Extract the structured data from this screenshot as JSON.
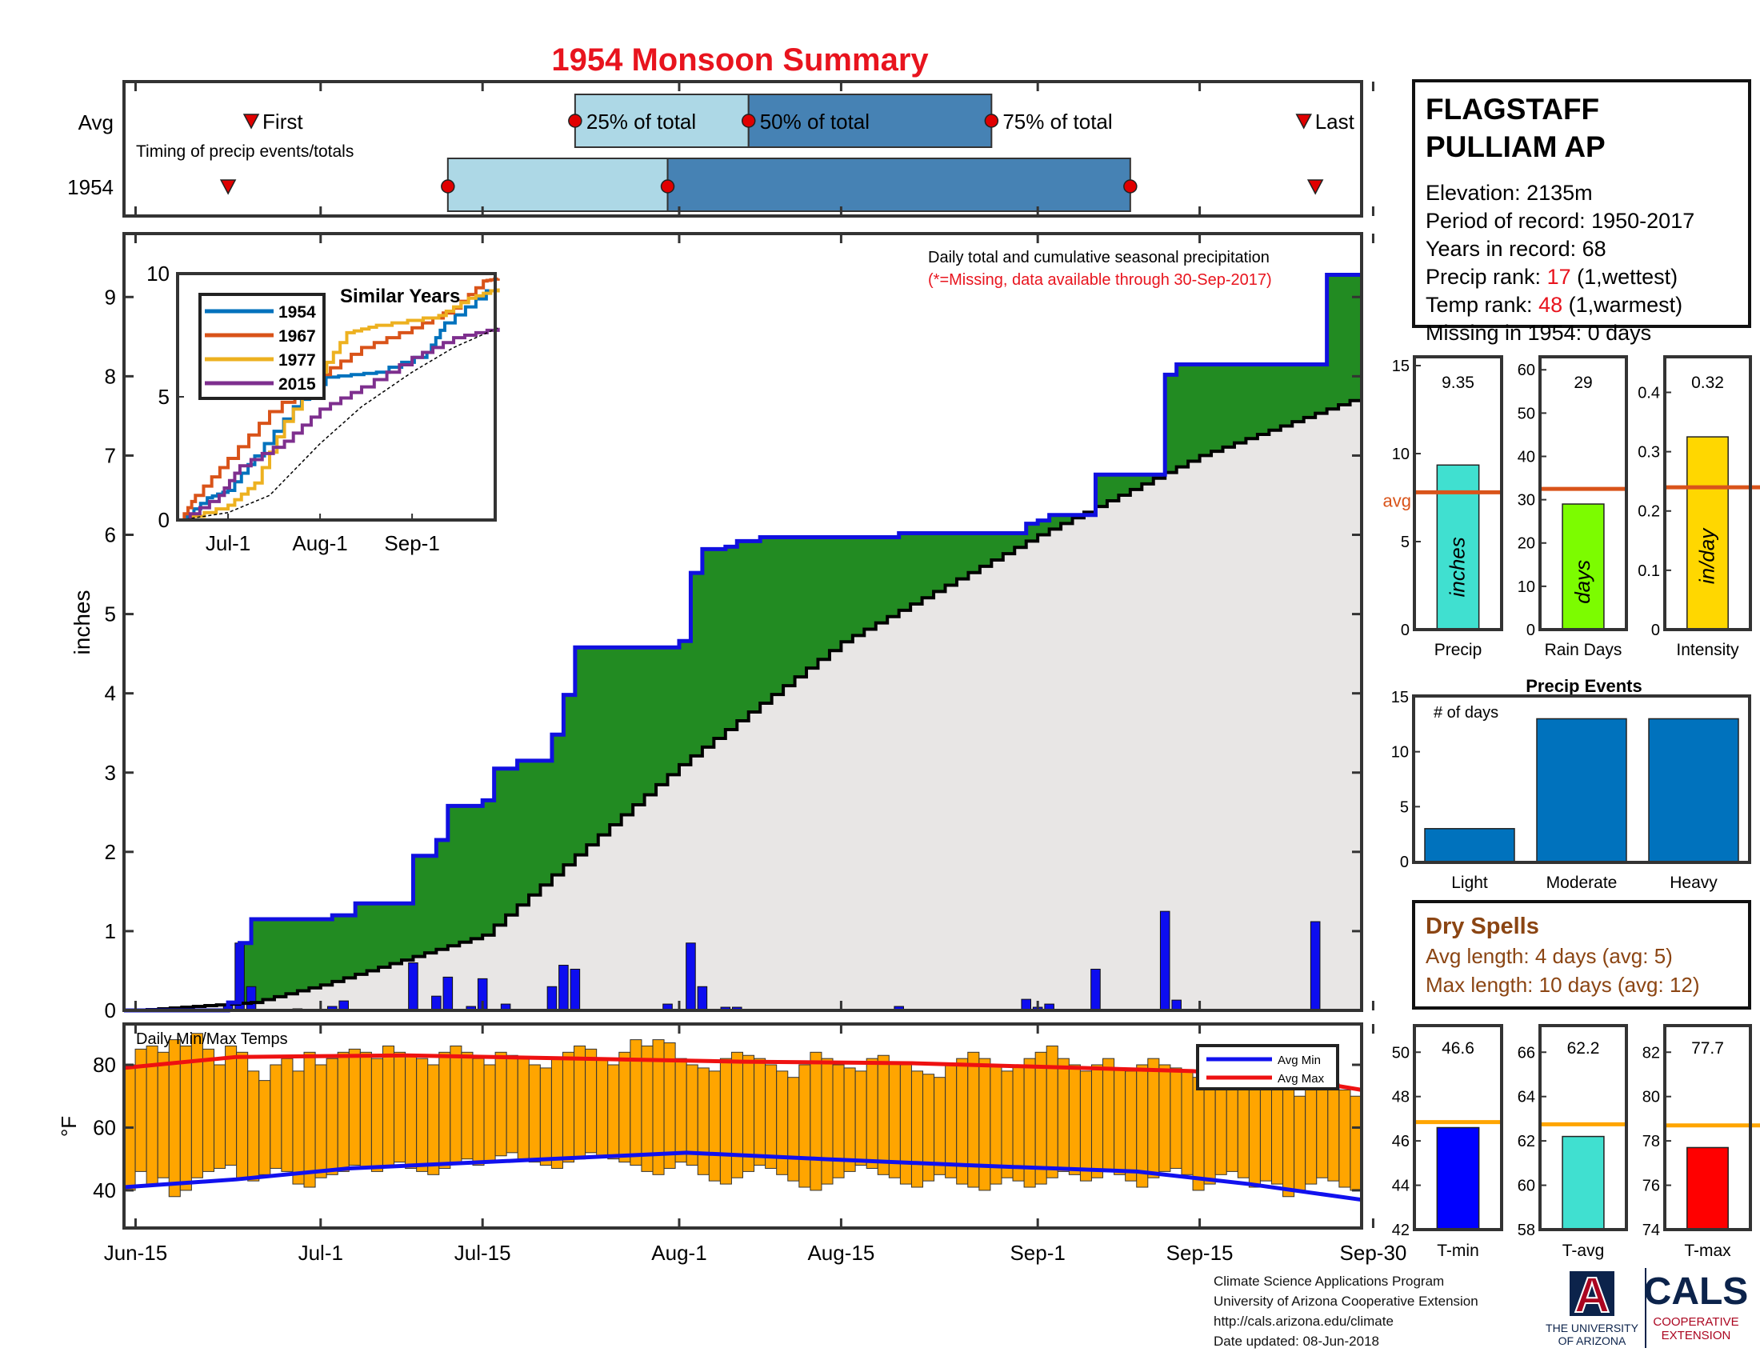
{
  "title": "1954 Monsoon Summary",
  "colors": {
    "title": "#e8141e",
    "rank": "#e8141e",
    "cum_fill": "#228b22",
    "avg_fill": "#e8e6e5",
    "cum_line": "#1010e0",
    "daily_bar": "#0d0df0",
    "q_light": "#add8e6",
    "q_dark": "#4682b4",
    "marker": "#e00000",
    "temp_bar": "#ffa500",
    "avg_max": "#ee1111",
    "avg_min": "#1111ee",
    "avg_line_orange": "#d9541a",
    "dry": "#8b4513",
    "event_bar": "#0072bd",
    "ua_blue": "#0c234b",
    "ua_red": "#ab0520"
  },
  "timing": {
    "row_labels": [
      "Avg",
      "1954"
    ],
    "note": "Timing of precip events/totals",
    "avg": {
      "first": "Jun-25",
      "q25": "Jul-23",
      "q50": "Aug-7",
      "q75": "Aug-28",
      "last": "Sep-24"
    },
    "year": {
      "first": "Jun-23",
      "q25": "Jul-12",
      "q50": "Jul-31",
      "q75": "Sep-9",
      "last": "Sep-25"
    },
    "labels": {
      "first": "First",
      "q25": "25% of total",
      "q50": "50% of total",
      "q75": "75% of total",
      "last": "Last"
    }
  },
  "station": {
    "name_line1": "FLAGSTAFF",
    "name_line2": "PULLIAM AP",
    "elevation": "Elevation: 2135m",
    "period": "Period of record: 1950-2017",
    "years": "Years in record: 68",
    "precip_rank_label": "Precip rank: ",
    "precip_rank_value": "17",
    "precip_rank_note": " (1,wettest)",
    "temp_rank_label": "Temp rank: ",
    "temp_rank_value": "48",
    "temp_rank_note": " (1,warmest)",
    "missing": "Missing in 1954: 0 days"
  },
  "main_chart": {
    "ylabel": "inches",
    "ylim": [
      0,
      9.8
    ],
    "yticks": [
      0,
      1,
      2,
      3,
      4,
      5,
      6,
      7,
      8,
      9
    ],
    "date_ticks": [
      "Jun-15",
      "Jul-1",
      "Jul-15",
      "Aug-1",
      "Aug-15",
      "Sep-1",
      "Sep-15",
      "Sep-30"
    ],
    "note1": "Daily total and cumulative seasonal precipitation",
    "note2": "(*=Missing, data available through 30-Sep-2017)"
  },
  "chart_data": [
    {
      "type": "area",
      "title": "Daily total and cumulative seasonal precipitation",
      "ylabel": "inches",
      "ylim": [
        0,
        9.8
      ],
      "series": [
        {
          "name": "1954 cumulative",
          "steps": [
            [
              "Jun-15",
              0.0
            ],
            [
              "Jun-23",
              0.1
            ],
            [
              "Jun-24",
              0.85
            ],
            [
              "Jun-25",
              1.15
            ],
            [
              "Jul-2",
              1.2
            ],
            [
              "Jul-4",
              1.35
            ],
            [
              "Jul-9",
              1.95
            ],
            [
              "Jul-11",
              2.15
            ],
            [
              "Jul-12",
              2.58
            ],
            [
              "Jul-15",
              2.65
            ],
            [
              "Jul-16",
              3.05
            ],
            [
              "Jul-18",
              3.15
            ],
            [
              "Jul-21",
              3.48
            ],
            [
              "Jul-22",
              3.98
            ],
            [
              "Jul-23",
              4.58
            ],
            [
              "Aug-1",
              4.66
            ],
            [
              "Aug-2",
              5.52
            ],
            [
              "Aug-3",
              5.82
            ],
            [
              "Aug-5",
              5.85
            ],
            [
              "Aug-6",
              5.92
            ],
            [
              "Aug-8",
              5.97
            ],
            [
              "Aug-20",
              6.02
            ],
            [
              "Aug-31",
              6.14
            ],
            [
              "Sep-1",
              6.18
            ],
            [
              "Sep-2",
              6.25
            ],
            [
              "Sep-6",
              6.76
            ],
            [
              "Sep-12",
              8.02
            ],
            [
              "Sep-13",
              8.15
            ],
            [
              "Sep-26",
              9.28
            ]
          ]
        },
        {
          "name": "Average cumulative",
          "points": [
            [
              "Jun-15",
              0.0
            ],
            [
              "Jun-25",
              0.1
            ],
            [
              "Jul-1",
              0.32
            ],
            [
              "Jul-15",
              0.95
            ],
            [
              "Aug-1",
              3.1
            ],
            [
              "Aug-15",
              4.65
            ],
            [
              "Sep-1",
              6.0
            ],
            [
              "Sep-15",
              7.0
            ],
            [
              "Sep-30",
              7.8
            ]
          ]
        }
      ]
    },
    {
      "type": "bar",
      "title": "Daily precipitation",
      "ylabel": "inches",
      "x": [
        "Jun-23",
        "Jun-24",
        "Jun-25",
        "Jun-29",
        "Jul-2",
        "Jul-3",
        "Jul-9",
        "Jul-11",
        "Jul-12",
        "Jul-14",
        "Jul-15",
        "Jul-17",
        "Jul-21",
        "Jul-22",
        "Jul-23",
        "Jul-31",
        "Aug-2",
        "Aug-3",
        "Aug-5",
        "Aug-6",
        "Aug-20",
        "Aug-31",
        "Sep-1",
        "Sep-2",
        "Sep-6",
        "Sep-12",
        "Sep-13",
        "Sep-25"
      ],
      "values": [
        0.08,
        0.85,
        0.3,
        0.02,
        0.05,
        0.12,
        0.6,
        0.18,
        0.42,
        0.05,
        0.4,
        0.08,
        0.3,
        0.57,
        0.52,
        0.08,
        0.85,
        0.3,
        0.04,
        0.04,
        0.05,
        0.14,
        0.04,
        0.08,
        0.52,
        1.25,
        0.13,
        1.12
      ]
    },
    {
      "type": "line",
      "title": "Similar Years",
      "ylim": [
        0,
        10
      ],
      "yticks": [
        0,
        5,
        10
      ],
      "xticks": [
        "Jul-1",
        "Aug-1",
        "Sep-1"
      ],
      "series": [
        {
          "name": "1954",
          "color": "#0072bd",
          "points": [
            [
              "Jun-15",
              0
            ],
            [
              "Jun-24",
              0.9
            ],
            [
              "Jul-1",
              1.2
            ],
            [
              "Jul-10",
              2.6
            ],
            [
              "Jul-23",
              4.6
            ],
            [
              "Aug-3",
              5.8
            ],
            [
              "Aug-20",
              6.0
            ],
            [
              "Sep-6",
              6.8
            ],
            [
              "Sep-12",
              8.0
            ],
            [
              "Sep-26",
              9.3
            ],
            [
              "Sep-30",
              9.3
            ]
          ]
        },
        {
          "name": "1967",
          "color": "#d95319",
          "points": [
            [
              "Jun-15",
              0
            ],
            [
              "Jun-20",
              1.0
            ],
            [
              "Jul-1",
              2.5
            ],
            [
              "Jul-15",
              4.4
            ],
            [
              "Aug-1",
              5.9
            ],
            [
              "Aug-15",
              7.0
            ],
            [
              "Sep-1",
              7.8
            ],
            [
              "Sep-15",
              8.6
            ],
            [
              "Sep-25",
              9.7
            ],
            [
              "Sep-30",
              9.8
            ]
          ]
        },
        {
          "name": "1977",
          "color": "#edb120",
          "points": [
            [
              "Jun-15",
              0
            ],
            [
              "Jul-1",
              0.6
            ],
            [
              "Jul-10",
              1.5
            ],
            [
              "Jul-20",
              4.0
            ],
            [
              "Aug-1",
              6.0
            ],
            [
              "Aug-10",
              7.6
            ],
            [
              "Aug-20",
              7.9
            ],
            [
              "Sep-10",
              8.3
            ],
            [
              "Sep-20",
              9.0
            ],
            [
              "Sep-30",
              9.4
            ]
          ]
        },
        {
          "name": "2015",
          "color": "#7e2f8e",
          "points": [
            [
              "Jun-15",
              0
            ],
            [
              "Jun-28",
              1.0
            ],
            [
              "Jul-5",
              2.2
            ],
            [
              "Jul-20",
              3.2
            ],
            [
              "Aug-1",
              4.5
            ],
            [
              "Aug-15",
              5.4
            ],
            [
              "Sep-1",
              6.6
            ],
            [
              "Sep-15",
              7.4
            ],
            [
              "Sep-30",
              7.8
            ]
          ]
        },
        {
          "name": "",
          "color": "#000000",
          "dashed": true,
          "points": [
            [
              "Jun-15",
              0
            ],
            [
              "Jul-1",
              0.3
            ],
            [
              "Jul-15",
              1.0
            ],
            [
              "Aug-1",
              3.1
            ],
            [
              "Aug-15",
              4.6
            ],
            [
              "Sep-1",
              6.0
            ],
            [
              "Sep-15",
              7.0
            ],
            [
              "Sep-30",
              7.8
            ]
          ]
        }
      ]
    },
    {
      "type": "bar",
      "title": "Seasonal totals",
      "panels": [
        {
          "label": "Precip",
          "value": 9.35,
          "value_text": "9.35",
          "avg": 7.8,
          "ylim": [
            0,
            15.5
          ],
          "yticks": [
            0,
            5,
            10,
            15
          ],
          "unit": "inches",
          "color": "#40e0d0",
          "avg_label": "avg"
        },
        {
          "label": "Rain Days",
          "value": 29,
          "value_text": "29",
          "avg": 32.5,
          "ylim": [
            0,
            63
          ],
          "yticks": [
            0,
            10,
            20,
            30,
            40,
            50,
            60
          ],
          "unit": "days",
          "color": "#7cfc00"
        },
        {
          "label": "Intensity",
          "value": 0.325,
          "value_text": "0.32",
          "avg": 0.24,
          "ylim": [
            0,
            0.46
          ],
          "yticks": [
            0,
            0.1,
            0.2,
            0.3,
            0.4
          ],
          "unit": "in/day",
          "color": "#ffd700"
        }
      ]
    },
    {
      "type": "bar",
      "title": "Precip Events",
      "ylabel": "# of days",
      "categories": [
        "Light",
        "Moderate",
        "Heavy"
      ],
      "values": [
        3,
        13,
        13
      ],
      "ylim": [
        0,
        15
      ],
      "yticks": [
        0,
        5,
        10,
        15
      ]
    },
    {
      "type": "bar",
      "title": "Daily Min/Max Temps",
      "ylabel": "°F",
      "ylim": [
        28,
        93
      ],
      "yticks": [
        40,
        60,
        80
      ],
      "legend": [
        "Avg Min",
        "Avg Max"
      ],
      "legend_position": "top-right",
      "tmin": [
        40,
        46,
        42,
        44,
        38,
        40,
        44,
        46,
        47,
        48,
        44,
        43,
        45,
        47,
        46,
        42,
        41,
        44,
        45,
        46,
        48,
        47,
        46,
        48,
        49,
        47,
        46,
        45,
        47,
        49,
        50,
        48,
        49,
        51,
        52,
        50,
        49,
        48,
        47,
        49,
        50,
        52,
        51,
        50,
        49,
        48,
        46,
        45,
        47,
        49,
        48,
        45,
        43,
        42,
        44,
        46,
        48,
        47,
        45,
        43,
        41,
        40,
        42,
        44,
        46,
        48,
        47,
        45,
        44,
        42,
        41,
        43,
        45,
        44,
        42,
        41,
        40,
        42,
        44,
        43,
        41,
        42,
        44,
        46,
        45,
        43,
        44,
        46,
        45,
        43,
        41,
        44,
        46,
        47,
        45,
        40,
        42,
        45,
        46,
        44,
        41,
        43,
        42,
        38,
        40,
        42,
        44,
        43,
        41,
        40
      ],
      "tmax": [
        80,
        85,
        86,
        84,
        88,
        86,
        90,
        85,
        80,
        86,
        84,
        78,
        75,
        80,
        82,
        78,
        84,
        80,
        82,
        84,
        85,
        84,
        82,
        86,
        84,
        83,
        82,
        80,
        84,
        86,
        84,
        82,
        80,
        84,
        83,
        82,
        80,
        79,
        82,
        84,
        86,
        85,
        82,
        80,
        84,
        88,
        86,
        88,
        87,
        82,
        80,
        79,
        78,
        82,
        84,
        83,
        82,
        80,
        78,
        76,
        80,
        84,
        82,
        80,
        79,
        78,
        82,
        83,
        81,
        80,
        78,
        77,
        76,
        80,
        82,
        84,
        82,
        80,
        78,
        80,
        82,
        84,
        86,
        82,
        80,
        78,
        80,
        82,
        79,
        78,
        80,
        82,
        80,
        79,
        78,
        76,
        78,
        80,
        79,
        76,
        74,
        75,
        76,
        72,
        70,
        72,
        73,
        74,
        72,
        70
      ],
      "avg_min": [
        [
          0,
          41
        ],
        [
          10,
          43.5
        ],
        [
          20,
          47
        ],
        [
          35,
          49.5
        ],
        [
          50,
          52
        ],
        [
          62,
          50
        ],
        [
          75,
          48
        ],
        [
          90,
          46
        ],
        [
          100,
          42
        ],
        [
          110,
          37
        ]
      ],
      "avg_max": [
        [
          0,
          79
        ],
        [
          10,
          82.5
        ],
        [
          25,
          83
        ],
        [
          40,
          82
        ],
        [
          55,
          81
        ],
        [
          70,
          80.5
        ],
        [
          85,
          79
        ],
        [
          95,
          78
        ],
        [
          105,
          75
        ],
        [
          110,
          72
        ]
      ]
    },
    {
      "type": "bar",
      "title": "Seasonal temperatures",
      "panels": [
        {
          "label": "T-min",
          "value": 46.6,
          "value_text": "46.6",
          "avg": 46.85,
          "ylim": [
            42,
            51.2
          ],
          "yticks": [
            42,
            44,
            46,
            48,
            50
          ],
          "color": "#0000ff"
        },
        {
          "label": "T-avg",
          "value": 62.2,
          "value_text": "62.2",
          "avg": 62.75,
          "ylim": [
            58,
            67.2
          ],
          "yticks": [
            58,
            60,
            62,
            64,
            66
          ],
          "color": "#40e0d0"
        },
        {
          "label": "T-max",
          "value": 77.7,
          "value_text": "77.7",
          "avg": 78.7,
          "ylim": [
            74,
            83.2
          ],
          "yticks": [
            74,
            76,
            78,
            80,
            82
          ],
          "color": "#ff0000"
        }
      ]
    }
  ],
  "dry_spells": {
    "title": "Dry Spells",
    "avg": "Avg length: 4 days (avg: 5)",
    "max": "Max length: 10 days (avg: 12)"
  },
  "footer": {
    "line1": "Climate Science Applications Program",
    "line2": "University of Arizona Cooperative Extension",
    "line3": "http://cals.arizona.edu/climate",
    "line4": " Date updated: 08-Jun-2018"
  },
  "logos": {
    "ua_letter": "A",
    "ua_line1": "THE UNIVERSITY",
    "ua_line2": "OF ARIZONA",
    "cals": "CALS",
    "cals_line1": "COOPERATIVE",
    "cals_line2": "EXTENSION"
  }
}
